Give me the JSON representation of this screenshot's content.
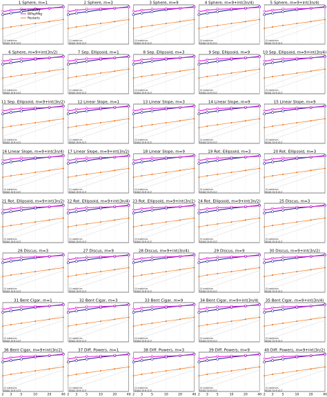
{
  "figure": {
    "colors": {
      "ipop": "#1f1f8f",
      "bipop": "#e01ee0",
      "restarts": "#f07820",
      "ref": "#9a9a9a"
    },
    "legend": [
      "ipopRNg",
      "BIPopRNg",
      "Restarts"
    ],
    "xticks": [
      "2",
      "3",
      "5",
      "10",
      "20",
      "40"
    ],
    "footnote": [
      "15 instances",
      "target 1E-8 v2.0"
    ]
  },
  "chart_data": {
    "type": "line",
    "x": [
      2,
      3,
      5,
      10,
      20,
      40
    ],
    "ylim": [
      0,
      8
    ],
    "panels": [
      {
        "title": "1 Sphere, m=1"
      },
      {
        "title": "2 Sphere, m=3"
      },
      {
        "title": "3 Sphere, m=9"
      },
      {
        "title": "4 Sphere, m=9+int(3n/4)"
      },
      {
        "title": "5 Sphere, m=9+int(3n/4)"
      },
      {
        "title": "6 Sphere, m=9+int(3n/2)"
      },
      {
        "title": "7 Sep. Ellipsoid, m=1"
      },
      {
        "title": "8 Sep. Ellipsoid, m=3"
      },
      {
        "title": "9 Sep. Ellipsoid, m=9"
      },
      {
        "title": "10 Sep. Ellipsoid, m=9+int(3n/4)"
      },
      {
        "title": "11 Sep. Ellipsoid, m=9+int(3n/2)"
      },
      {
        "title": "12 Linear Slope, m=1"
      },
      {
        "title": "13 Linear Slope, m=3"
      },
      {
        "title": "14 Linear Slope, m=9"
      },
      {
        "title": "15 Linear Slope, m=9"
      },
      {
        "title": "16 Linear Slope, m=9+int(3n/4)"
      },
      {
        "title": "17 Linear Slope, m=9+int(3n/2)"
      },
      {
        "title": "18 Linear Slope, m=9"
      },
      {
        "title": "19 Rot. Ellipsoid, m=3"
      },
      {
        "title": "20 Rot. Ellipsoid, m=3"
      },
      {
        "title": "21 Rot. Ellipsoid, m=9+int(3n/2)"
      },
      {
        "title": "22 Rot. Ellipsoid, m=9+int(3n/4)"
      },
      {
        "title": "23 Rot. Ellipsoid, m=9+int(3n/2)"
      },
      {
        "title": "24 Rot. Ellipsoid, m=9+int(3n/2)"
      },
      {
        "title": "25 Discus, m=3"
      },
      {
        "title": "26 Discus, m=3"
      },
      {
        "title": "27 Discus, m=9"
      },
      {
        "title": "28 Discus, m=9+int(3n/4)"
      },
      {
        "title": "29 Discus, m=9"
      },
      {
        "title": "30 Discus, m=9+int(3n/2)"
      },
      {
        "title": "31 Bent Cigar, m=1"
      },
      {
        "title": "32 Bent Cigar, m=3"
      },
      {
        "title": "33 Bent Cigar, m=9"
      },
      {
        "title": "34 Bent Cigar, m=9+int(3n/4)"
      },
      {
        "title": "35 Bent Cigar, m=9+int(3n/4)"
      },
      {
        "title": "36 Bent Cigar, m=9+int(3n/2)"
      },
      {
        "title": "37 Diff. Powers, m=1"
      },
      {
        "title": "38 Diff. Powers, m=3"
      },
      {
        "title": "39 Diff. Powers, m=9"
      },
      {
        "title": "40 Diff. Powers, m=9+int(3n/2)"
      }
    ],
    "series": [
      {
        "name": "ipopRNg",
        "values": [
          6.0,
          6.3,
          6.6,
          7.0,
          7.3,
          7.6
        ]
      },
      {
        "name": "BIPopRNg",
        "values": [
          6.6,
          6.9,
          7.1,
          7.2,
          7.3,
          7.5
        ]
      },
      {
        "name": "Restarts",
        "values": [
          3.2,
          3.5,
          3.8,
          4.2,
          4.6,
          5.0
        ]
      }
    ]
  }
}
